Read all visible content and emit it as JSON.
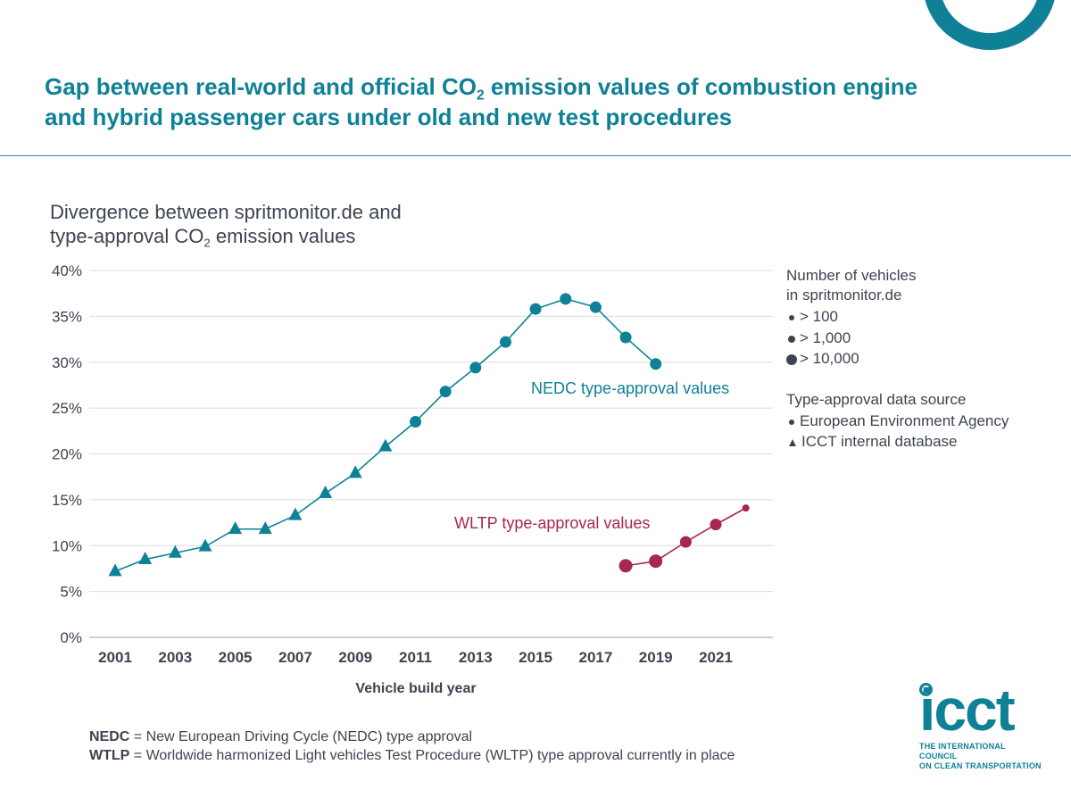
{
  "header": {
    "title_pre": "Gap between real-world and official CO",
    "title_sub": "2",
    "title_post": " emission values of combustion engine and hybrid passenger cars under old and new test procedures"
  },
  "chart_title": {
    "line1": "Divergence between spritmonitor.de and",
    "line2_pre": "type-approval CO",
    "line2_sub": "2",
    "line2_post": " emission values"
  },
  "chart_data": {
    "type": "line",
    "xlabel": "Vehicle build year",
    "ylabel": "",
    "ylim": [
      0,
      40
    ],
    "xlim": [
      2001,
      2022
    ],
    "yticks": [
      "0%",
      "5%",
      "10%",
      "15%",
      "20%",
      "25%",
      "30%",
      "35%",
      "40%"
    ],
    "xticks": [
      "2001",
      "2003",
      "2005",
      "2007",
      "2009",
      "2011",
      "2013",
      "2015",
      "2017",
      "2019",
      "2021"
    ],
    "grid": true,
    "legend_position": "right",
    "series": [
      {
        "name": "NEDC type-approval values",
        "color": "#0e8196",
        "points": [
          {
            "x": 2001,
            "y": 7.2,
            "marker": "triangle"
          },
          {
            "x": 2002,
            "y": 8.5,
            "marker": "triangle"
          },
          {
            "x": 2003,
            "y": 9.2,
            "marker": "triangle"
          },
          {
            "x": 2004,
            "y": 9.9,
            "marker": "triangle"
          },
          {
            "x": 2005,
            "y": 11.8,
            "marker": "triangle"
          },
          {
            "x": 2006,
            "y": 11.8,
            "marker": "triangle"
          },
          {
            "x": 2007,
            "y": 13.3,
            "marker": "triangle"
          },
          {
            "x": 2008,
            "y": 15.7,
            "marker": "triangle"
          },
          {
            "x": 2009,
            "y": 17.9,
            "marker": "triangle"
          },
          {
            "x": 2010,
            "y": 20.8,
            "marker": "triangle"
          },
          {
            "x": 2011,
            "y": 23.5,
            "marker": "circle",
            "vehicles": "> 1,000"
          },
          {
            "x": 2012,
            "y": 26.8,
            "marker": "circle",
            "vehicles": "> 1,000"
          },
          {
            "x": 2013,
            "y": 29.4,
            "marker": "circle",
            "vehicles": "> 1,000"
          },
          {
            "x": 2014,
            "y": 32.2,
            "marker": "circle",
            "vehicles": "> 1,000"
          },
          {
            "x": 2015,
            "y": 35.8,
            "marker": "circle",
            "vehicles": "> 1,000"
          },
          {
            "x": 2016,
            "y": 36.9,
            "marker": "circle",
            "vehicles": "> 1,000"
          },
          {
            "x": 2017,
            "y": 36.0,
            "marker": "circle",
            "vehicles": "> 1,000"
          },
          {
            "x": 2018,
            "y": 32.7,
            "marker": "circle",
            "vehicles": "> 1,000"
          },
          {
            "x": 2019,
            "y": 29.8,
            "marker": "circle",
            "vehicles": "> 1,000"
          }
        ]
      },
      {
        "name": "WLTP type-approval values",
        "color": "#a8274d",
        "points": [
          {
            "x": 2018,
            "y": 7.8,
            "marker": "circle",
            "vehicles": "> 10,000"
          },
          {
            "x": 2019,
            "y": 8.3,
            "marker": "circle",
            "vehicles": "> 10,000"
          },
          {
            "x": 2020,
            "y": 10.4,
            "marker": "circle",
            "vehicles": "> 1,000"
          },
          {
            "x": 2021,
            "y": 12.3,
            "marker": "circle",
            "vehicles": "> 1,000"
          },
          {
            "x": 2022,
            "y": 14.1,
            "marker": "circle",
            "vehicles": "> 100"
          }
        ]
      }
    ]
  },
  "legend": {
    "size_title_1": "Number of vehicles",
    "size_title_2": "in spritmonitor.de",
    "sizes": [
      "> 100",
      "> 1,000",
      "> 10,000"
    ],
    "source_title": "Type-approval data source",
    "sources": [
      "European Environment Agency",
      "ICCT internal database"
    ]
  },
  "notes": {
    "nedc_abbr": "NEDC",
    "nedc_text": " = New European Driving Cycle (NEDC) type approval",
    "wltp_abbr": "WTLP",
    "wltp_text": " = Worldwide harmonized Light vehicles Test Procedure (WLTP) type approval currently in place"
  },
  "logo": {
    "word": "icct",
    "line1": "THE INTERNATIONAL COUNCIL",
    "line2": "ON CLEAN TRANSPORTATION"
  }
}
